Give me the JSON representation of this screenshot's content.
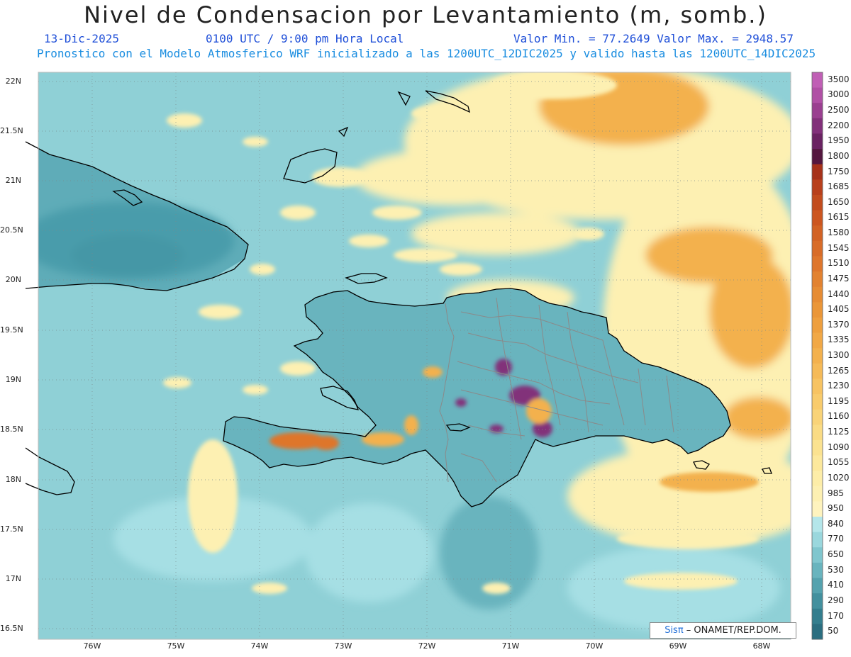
{
  "header": {
    "title": "Nivel de Condensacion por Levantamiento (m, somb.)",
    "date": "13-Dic-2025",
    "time": "0100 UTC / 9:00 pm Hora Local",
    "min_max": "Valor Min. = 77.2649  Valor Max. = 2948.57",
    "forecast": "Pronostico con el Modelo Atmosferico WRF inicializado a las 1200UTC_12DIC2025 y valido hasta las  1200UTC_14DIC2025"
  },
  "axes": {
    "lat_labels": [
      "22N",
      "21.5N",
      "21N",
      "20.5N",
      "20N",
      "19.5N",
      "19N",
      "18.5N",
      "18N",
      "17.5N",
      "17N",
      "16.5N"
    ],
    "lon_labels": [
      "76W",
      "75W",
      "74W",
      "73W",
      "72W",
      "71W",
      "70W",
      "69W",
      "68W"
    ]
  },
  "colorbar": {
    "labels": [
      "3500",
      "3000",
      "2500",
      "2200",
      "1950",
      "1800",
      "1750",
      "1685",
      "1650",
      "1615",
      "1580",
      "1545",
      "1510",
      "1475",
      "1440",
      "1405",
      "1370",
      "1335",
      "1300",
      "1265",
      "1230",
      "1195",
      "1160",
      "1125",
      "1090",
      "1055",
      "1020",
      "985",
      "950",
      "840",
      "770",
      "650",
      "530",
      "410",
      "290",
      "170",
      "50"
    ],
    "colors": [
      "#c05fb5",
      "#b050a5",
      "#9a3f90",
      "#82307a",
      "#6a2262",
      "#54173f",
      "#a6321a",
      "#b8401c",
      "#c24c1e",
      "#cc5620",
      "#d26224",
      "#d86c28",
      "#de762c",
      "#e28230",
      "#e68c34",
      "#ea9638",
      "#ee9f3e",
      "#f1a846",
      "#f3b14e",
      "#f5ba58",
      "#f7c362",
      "#f8cb6c",
      "#f9d378",
      "#fadb84",
      "#fbe290",
      "#fce89c",
      "#fdeda8",
      "#fdf0b2",
      "#fef3be",
      "#b4e6ea",
      "#9ad7dd",
      "#80c6ce",
      "#69b4be",
      "#55a2ae",
      "#43909e",
      "#347e8e",
      "#2b6e80"
    ]
  },
  "map": {
    "colors": {
      "ocean": "#8fd0d6",
      "ocean_light": "#a6dfe4",
      "teal": "#69b4be",
      "teal_dark": "#4a9cab",
      "teal_darker": "#3a8a9a",
      "yellow": "#fdf0b2",
      "orange": "#f3b14e",
      "orange_dark": "#de762c",
      "purple": "#82307a",
      "coast": "#000000",
      "border": "#8a8a8a"
    }
  },
  "credit": {
    "sis": "Sisπ",
    "text": " – ONAMET/REP.DOM."
  }
}
